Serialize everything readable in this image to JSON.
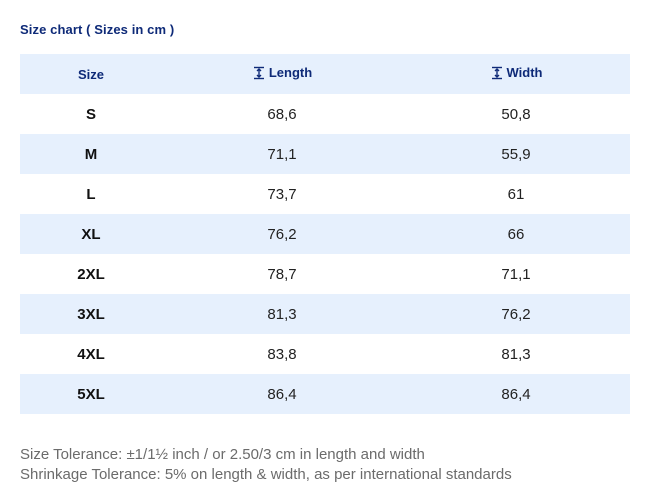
{
  "title": "Size chart ( Sizes in cm )",
  "table": {
    "headers": {
      "size": "Size",
      "length": "Length",
      "width": "Width"
    },
    "rows": [
      {
        "size": "S",
        "length": "68,6",
        "width": "50,8"
      },
      {
        "size": "M",
        "length": "71,1",
        "width": "55,9"
      },
      {
        "size": "L",
        "length": "73,7",
        "width": "61"
      },
      {
        "size": "XL",
        "length": "76,2",
        "width": "66"
      },
      {
        "size": "2XL",
        "length": "78,7",
        "width": "71,1"
      },
      {
        "size": "3XL",
        "length": "81,3",
        "width": "76,2"
      },
      {
        "size": "4XL",
        "length": "83,8",
        "width": "81,3"
      },
      {
        "size": "5XL",
        "length": "86,4",
        "width": "86,4"
      }
    ]
  },
  "notes": {
    "size_tolerance": "Size Tolerance: ±1/1½ inch / or 2.50/3 cm in length and width",
    "shrinkage_tolerance": "Shrinkage Tolerance: 5% on length & width, as per international standards"
  },
  "colors": {
    "header_text": "#0e2a78",
    "row_shade": "#e6f0fd",
    "note_text": "#6b6b6b"
  },
  "icons": {
    "length": "vertical-measure-icon",
    "width": "vertical-measure-icon"
  }
}
